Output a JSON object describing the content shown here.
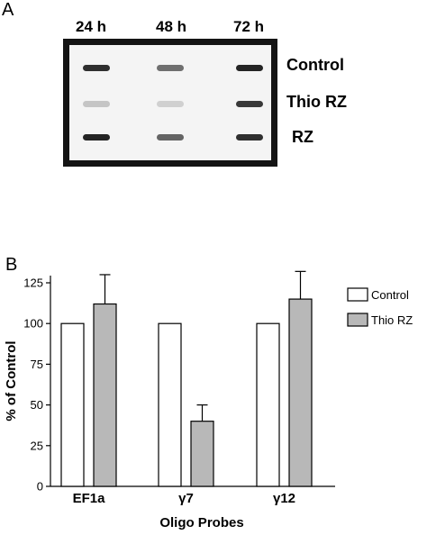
{
  "panel_a": {
    "letter": "A",
    "time_labels": [
      "24 h",
      "48 h",
      "72 h"
    ],
    "row_labels": [
      "Control",
      "Thio RZ",
      "RZ"
    ],
    "band_intensity": [
      [
        0.9,
        0.6,
        0.95
      ],
      [
        0.2,
        0.15,
        0.85
      ],
      [
        0.95,
        0.65,
        0.9
      ]
    ]
  },
  "panel_b": {
    "letter": "B"
  },
  "chart_data": {
    "type": "bar",
    "categories": [
      "EF1a",
      "γ7",
      "γ12"
    ],
    "series": [
      {
        "name": "Control",
        "values": [
          100,
          100,
          100
        ],
        "errors": [
          0,
          0,
          0
        ],
        "color": "#ffffff"
      },
      {
        "name": "Thio RZ",
        "values": [
          112,
          40,
          115
        ],
        "errors": [
          18,
          10,
          17
        ],
        "color": "#b8b8b8"
      }
    ],
    "xlabel": "Oligo Probes",
    "ylabel": "% of Control",
    "ylim": [
      0,
      125
    ],
    "yticks": [
      "0",
      "25",
      "50",
      "75",
      "100",
      "125"
    ],
    "grid": false,
    "legend": "top-right"
  }
}
